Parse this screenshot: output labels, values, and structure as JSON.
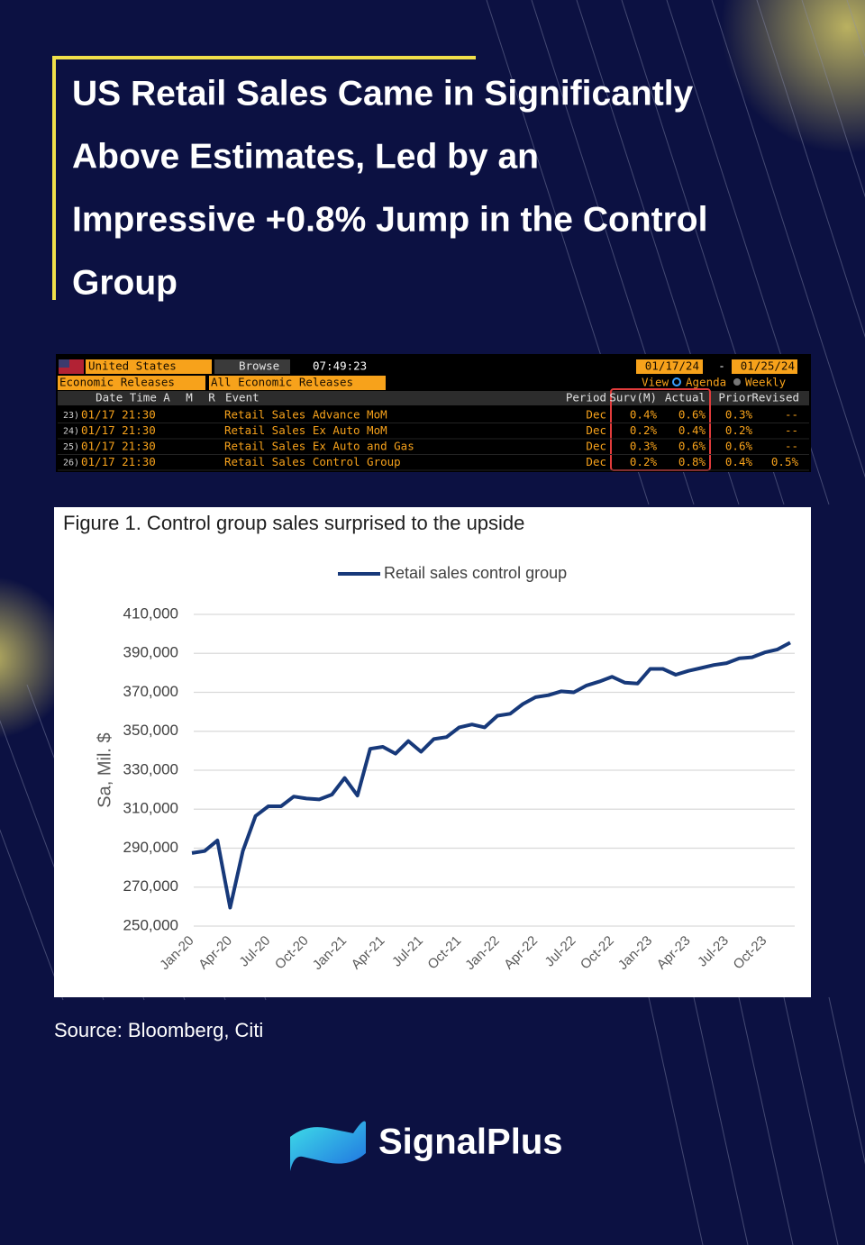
{
  "header": {
    "title_lines": [
      "US Retail Sales Came in Significantly",
      "Above Estimates, Led by an",
      "Impressive +0.8% Jump in the Control",
      "Group"
    ]
  },
  "table": {
    "top": {
      "country": "United States",
      "browse": "Browse",
      "time": "07:49:23",
      "start": "01/17/24",
      "dash": "-",
      "end": "01/25/24"
    },
    "filter": {
      "category": "Economic Releases",
      "releases": "All Economic Releases",
      "view": "View",
      "agenda": "Agenda",
      "weekly": "Weekly"
    },
    "columns": [
      "Date Time",
      "A",
      "M",
      "R",
      "Event",
      "Period",
      "Surv(M)",
      "Actual",
      "Prior",
      "Revised"
    ],
    "rows": [
      [
        "23)",
        "01/17 21:30",
        "Retail Sales Advance MoM",
        "Dec",
        "0.4%",
        "0.6%",
        "0.3%",
        "--"
      ],
      [
        "24)",
        "01/17 21:30",
        "Retail Sales Ex Auto MoM",
        "Dec",
        "0.2%",
        "0.4%",
        "0.2%",
        "--"
      ],
      [
        "25)",
        "01/17 21:30",
        "Retail Sales Ex Auto and Gas",
        "Dec",
        "0.3%",
        "0.6%",
        "0.6%",
        "--"
      ],
      [
        "26)",
        "01/17 21:30",
        "Retail Sales Control Group",
        "Dec",
        "0.2%",
        "0.8%",
        "0.4%",
        "0.5%"
      ]
    ]
  },
  "chart_data": {
    "type": "line",
    "title": "Figure 1. Control group sales surprised to the upside",
    "y_label": "Sa, Mil. $",
    "categories": [
      "Jan-20",
      null,
      null,
      "Apr-20",
      null,
      null,
      "Jul-20",
      null,
      null,
      "Oct-20",
      null,
      null,
      "Jan-21",
      null,
      null,
      "Apr-21",
      null,
      null,
      "Jul-21",
      null,
      null,
      "Oct-21",
      null,
      null,
      "Jan-22",
      null,
      null,
      "Apr-22",
      null,
      null,
      "Jul-22",
      null,
      null,
      "Oct-22",
      null,
      null,
      "Jan-23",
      null,
      null,
      "Apr-23",
      null,
      null,
      "Jul-23",
      null,
      null,
      "Oct-23",
      null,
      null
    ],
    "series": [
      {
        "name": "Retail sales control group",
        "color": "#17397a",
        "values": [
          287500,
          288500,
          294000,
          259500,
          288500,
          306500,
          311500,
          311500,
          316500,
          315500,
          315000,
          317500,
          326000,
          317000,
          341000,
          342000,
          338500,
          345000,
          339500,
          346000,
          347000,
          352000,
          353500,
          352000,
          358000,
          359000,
          364000,
          367500,
          368500,
          370500,
          370000,
          373500,
          375500,
          378000,
          375000,
          374500,
          382000,
          382000,
          379000,
          381000,
          382500,
          384000,
          385000,
          387500,
          388000,
          390500,
          392000,
          395500
        ]
      }
    ],
    "ylim": [
      250000,
      410000
    ],
    "yticks": [
      {
        "value": 250000,
        "label": "250,000"
      },
      {
        "value": 270000,
        "label": "270,000"
      },
      {
        "value": 290000,
        "label": "290,000"
      },
      {
        "value": 310000,
        "label": "310,000"
      },
      {
        "value": 330000,
        "label": "330,000"
      },
      {
        "value": 350000,
        "label": "350,000"
      },
      {
        "value": 370000,
        "label": "370,000"
      },
      {
        "value": 390000,
        "label": "390,000"
      },
      {
        "value": 410000,
        "label": "410,000"
      }
    ],
    "grid": true,
    "legend": "top"
  },
  "source": "Source: Bloomberg, Citi",
  "logo": "SignalPlus"
}
